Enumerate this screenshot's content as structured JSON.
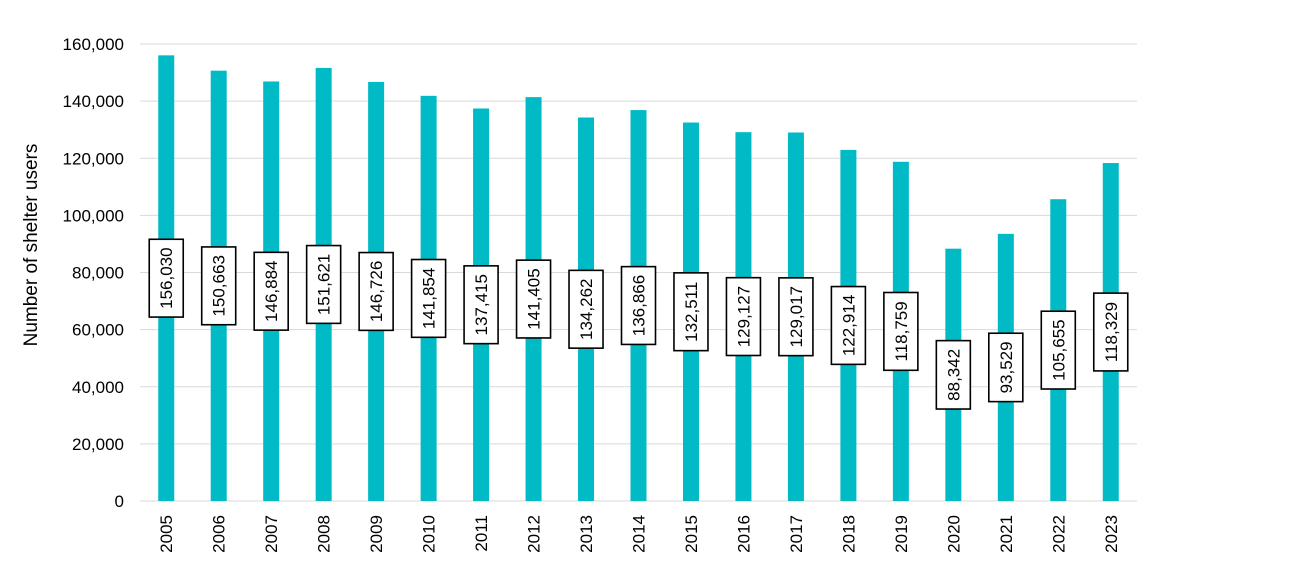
{
  "chart_data": {
    "type": "bar",
    "ylabel": "Number of shelter users",
    "xlabel": "",
    "title": "",
    "ylim": [
      0,
      160000
    ],
    "ytick_step": 20000,
    "yticks": [
      "0",
      "20,000",
      "40,000",
      "60,000",
      "80,000",
      "100,000",
      "120,000",
      "140,000",
      "160,000"
    ],
    "grid": true,
    "categories": [
      "2005",
      "2006",
      "2007",
      "2008",
      "2009",
      "2010",
      "2011",
      "2012",
      "2013",
      "2014",
      "2015",
      "2016",
      "2017",
      "2018",
      "2019",
      "2020",
      "2021",
      "2022",
      "2023"
    ],
    "values": [
      156030,
      150663,
      146884,
      151621,
      146726,
      141854,
      137415,
      141405,
      134262,
      136866,
      132511,
      129127,
      129017,
      122914,
      118759,
      88342,
      93529,
      105655,
      118329
    ],
    "data_labels": [
      "156,030",
      "150,663",
      "146,884",
      "151,621",
      "146,726",
      "141,854",
      "137,415",
      "141,405",
      "134,262",
      "136,866",
      "132,511",
      "129,127",
      "129,017",
      "122,914",
      "118,759",
      "88,342",
      "93,529",
      "105,655",
      "118,329"
    ],
    "bar_color": "#00BAC6",
    "grid_color": "#D9D9D9"
  }
}
